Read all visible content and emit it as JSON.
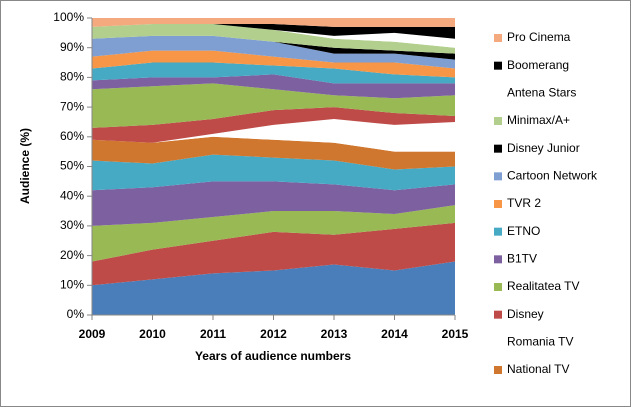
{
  "chart_data": {
    "type": "stacked-area-100",
    "x_label": "Years  of audience numbers",
    "y_label": "Audience (%)",
    "x": [
      2009,
      2010,
      2011,
      2012,
      2013,
      2014,
      2015
    ],
    "xlim": [
      2009,
      2015
    ],
    "xticks": [
      2009,
      2010,
      2011,
      2012,
      2013,
      2014,
      2015
    ],
    "ylim": [
      0,
      100
    ],
    "yticks": [
      {
        "value": 0,
        "label": "0%"
      },
      {
        "value": 10,
        "label": "10%"
      },
      {
        "value": 20,
        "label": "20%"
      },
      {
        "value": 30,
        "label": "30%"
      },
      {
        "value": 40,
        "label": "40%"
      },
      {
        "value": 50,
        "label": "50%"
      },
      {
        "value": 60,
        "label": "60%"
      },
      {
        "value": 70,
        "label": "70%"
      },
      {
        "value": 80,
        "label": "80%"
      },
      {
        "value": 90,
        "label": "90%"
      },
      {
        "value": 100,
        "label": "100%"
      }
    ],
    "legend_position": "right",
    "series": [
      {
        "color": "#4a7ebb",
        "values": [
          10,
          12,
          14,
          15,
          17,
          15,
          18
        ]
      },
      {
        "color": "#be4b48",
        "values": [
          8,
          10,
          11,
          13,
          10,
          14,
          13
        ]
      },
      {
        "color": "#98b954",
        "values": [
          12,
          9,
          8,
          7,
          8,
          5,
          6
        ]
      },
      {
        "color": "#7d60a0",
        "values": [
          12,
          12,
          12,
          10,
          9,
          8,
          7
        ]
      },
      {
        "color": "#46aac5",
        "values": [
          10,
          8,
          9,
          8,
          8,
          7,
          6
        ]
      },
      {
        "name": "National TV",
        "color": "#d0772f",
        "values": [
          7,
          7,
          6,
          6,
          6,
          6,
          5
        ]
      },
      {
        "name": "Romania TV",
        "color": "#ffffff",
        "values": [
          0,
          0,
          1,
          5,
          8,
          9,
          10
        ]
      },
      {
        "name": "Disney",
        "color": "#be4b48",
        "values": [
          4,
          6,
          5,
          5,
          4,
          4,
          2
        ]
      },
      {
        "name": "Realitatea TV",
        "color": "#98b954",
        "values": [
          13,
          13,
          12,
          7,
          4,
          5,
          7
        ]
      },
      {
        "name": "B1TV",
        "color": "#7d60a0",
        "values": [
          3,
          3,
          2,
          5,
          4,
          5,
          4
        ]
      },
      {
        "name": "ETNO",
        "color": "#46aac5",
        "values": [
          4,
          5,
          5,
          3,
          5,
          3,
          2
        ]
      },
      {
        "name": "TVR 2",
        "color": "#f79646",
        "values": [
          4,
          4,
          4,
          3,
          2,
          4,
          3
        ]
      },
      {
        "name": "Cartoon Network",
        "color": "#7f9fd3",
        "values": [
          6,
          5,
          5,
          5,
          3,
          3,
          3
        ]
      },
      {
        "name": "Disney Junior",
        "color": "#000000",
        "values": [
          0,
          0,
          0,
          0,
          2,
          1,
          2
        ]
      },
      {
        "name": "Minimax/A+",
        "color": "#b3cf8e",
        "values": [
          4,
          4,
          4,
          4,
          3,
          3,
          2
        ]
      },
      {
        "name": "Antena Stars",
        "color": "#ffffff",
        "values": [
          0,
          0,
          0,
          0,
          1,
          3,
          3
        ]
      },
      {
        "name": "Boomerang",
        "color": "#000000",
        "values": [
          0,
          0,
          0,
          2,
          3,
          2,
          4
        ]
      },
      {
        "name": "Pro Cinema",
        "color": "#f5a97f",
        "values": [
          3,
          2,
          2,
          2,
          3,
          3,
          3
        ]
      }
    ]
  }
}
